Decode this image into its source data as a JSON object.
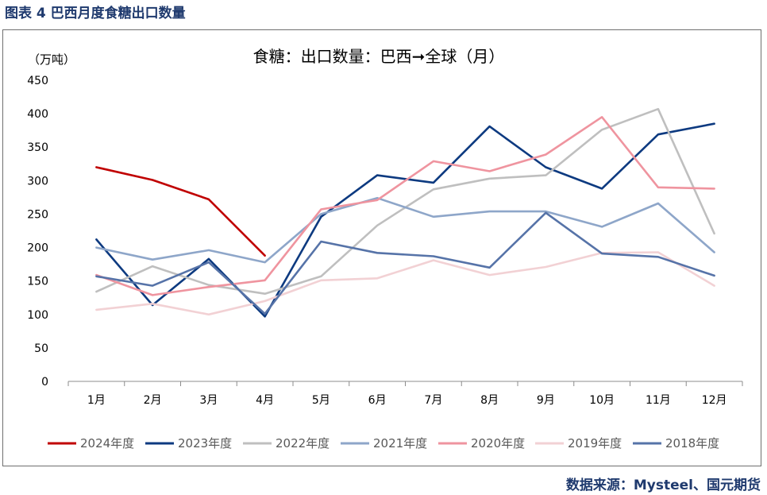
{
  "caption": "图表 4  巴西月度食糖出口数量",
  "source": "数据来源：Mysteel、国元期货",
  "chart_data": {
    "type": "line",
    "title": "食糖：出口数量：巴西➞全球（月）",
    "ylabel": "（万吨）",
    "xlabel": "",
    "categories": [
      "1月",
      "2月",
      "3月",
      "4月",
      "5月",
      "6月",
      "7月",
      "8月",
      "9月",
      "10月",
      "11月",
      "12月"
    ],
    "ylim": [
      0,
      450
    ],
    "yticks": [
      0,
      50,
      100,
      150,
      200,
      250,
      300,
      350,
      400,
      450
    ],
    "legend_position": "bottom",
    "series": [
      {
        "name": "2024年度",
        "color": "#c00000",
        "values": [
          320,
          301,
          272,
          188,
          null,
          null,
          null,
          null,
          null,
          null,
          null,
          null
        ]
      },
      {
        "name": "2023年度",
        "color": "#0d3a80",
        "values": [
          212,
          114,
          183,
          97,
          246,
          308,
          297,
          381,
          320,
          288,
          369,
          385
        ]
      },
      {
        "name": "2022年度",
        "color": "#bfbfbf",
        "values": [
          134,
          172,
          144,
          131,
          157,
          233,
          287,
          303,
          308,
          376,
          407,
          221
        ]
      },
      {
        "name": "2021年度",
        "color": "#8ea6c9",
        "values": [
          200,
          182,
          196,
          178,
          250,
          274,
          246,
          254,
          254,
          231,
          266,
          193
        ]
      },
      {
        "name": "2020年度",
        "color": "#ef949f",
        "values": [
          159,
          129,
          141,
          151,
          257,
          271,
          329,
          314,
          339,
          395,
          290,
          288
        ]
      },
      {
        "name": "2019年度",
        "color": "#f2d1d4",
        "values": [
          107,
          116,
          100,
          120,
          151,
          154,
          181,
          159,
          171,
          192,
          193,
          143
        ]
      },
      {
        "name": "2018年度",
        "color": "#5673a8",
        "values": [
          157,
          143,
          178,
          101,
          209,
          192,
          187,
          170,
          252,
          191,
          186,
          158
        ]
      }
    ]
  }
}
